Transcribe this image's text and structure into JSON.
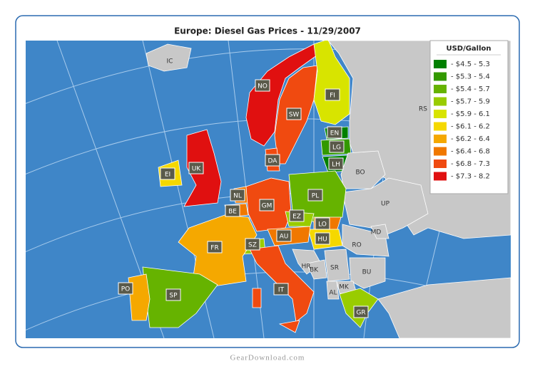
{
  "title": "Europe: Diesel Gas Prices - 11/29/2007",
  "legend": {
    "title": "USD/Gallon",
    "items": [
      {
        "label": "- $4.5 - 5.3",
        "color": "#008000"
      },
      {
        "label": "- $5.3 - 5.4",
        "color": "#339900"
      },
      {
        "label": "- $5.4 - 5.7",
        "color": "#66b300"
      },
      {
        "label": "- $5.7 - 5.9",
        "color": "#99cc00"
      },
      {
        "label": "- $5.9 - 6.1",
        "color": "#d8e400"
      },
      {
        "label": "- $6.1 - 6.2",
        "color": "#f5d800"
      },
      {
        "label": "- $6.2 - 6.4",
        "color": "#f5a800"
      },
      {
        "label": "- $6.4 - 6.8",
        "color": "#f07800"
      },
      {
        "label": "- $6.8 - 7.3",
        "color": "#f04a10"
      },
      {
        "label": "- $7.3 - 8.2",
        "color": "#e01010"
      }
    ]
  },
  "countries": [
    {
      "label": "IC",
      "color": null
    },
    {
      "label": "NO",
      "color": "#e01010"
    },
    {
      "label": "SW",
      "color": "#f04a10"
    },
    {
      "label": "FI",
      "color": "#d8e400"
    },
    {
      "label": "RS",
      "color": null
    },
    {
      "label": "EN",
      "color": "#008000"
    },
    {
      "label": "LG",
      "color": "#339900"
    },
    {
      "label": "LH",
      "color": "#008000"
    },
    {
      "label": "BO",
      "color": null
    },
    {
      "label": "UP",
      "color": null
    },
    {
      "label": "UK",
      "color": "#e01010"
    },
    {
      "label": "EI",
      "color": "#f5d800"
    },
    {
      "label": "DA",
      "color": "#f04a10"
    },
    {
      "label": "NL",
      "color": "#f07800"
    },
    {
      "label": "BE",
      "color": "#f07800"
    },
    {
      "label": "GM",
      "color": "#f04a10"
    },
    {
      "label": "PL",
      "color": "#66b300"
    },
    {
      "label": "EZ",
      "color": "#99cc00"
    },
    {
      "label": "LO",
      "color": "#f07800"
    },
    {
      "label": "HU",
      "color": "#f5d800"
    },
    {
      "label": "AU",
      "color": "#f07800"
    },
    {
      "label": "SZ",
      "color": "#99cc00"
    },
    {
      "label": "FR",
      "color": "#f5a800"
    },
    {
      "label": "SP",
      "color": "#66b300"
    },
    {
      "label": "PO",
      "color": "#f5a800"
    },
    {
      "label": "IT",
      "color": "#f04a10"
    },
    {
      "label": "RO",
      "color": null
    },
    {
      "label": "MD",
      "color": null
    },
    {
      "label": "HR",
      "color": null
    },
    {
      "label": "BK",
      "color": null
    },
    {
      "label": "SR",
      "color": null
    },
    {
      "label": "BU",
      "color": null
    },
    {
      "label": "AL",
      "color": null
    },
    {
      "label": "MK",
      "color": null
    },
    {
      "label": "GR",
      "color": "#99cc00"
    }
  ],
  "watermark": "GearDownload.com"
}
